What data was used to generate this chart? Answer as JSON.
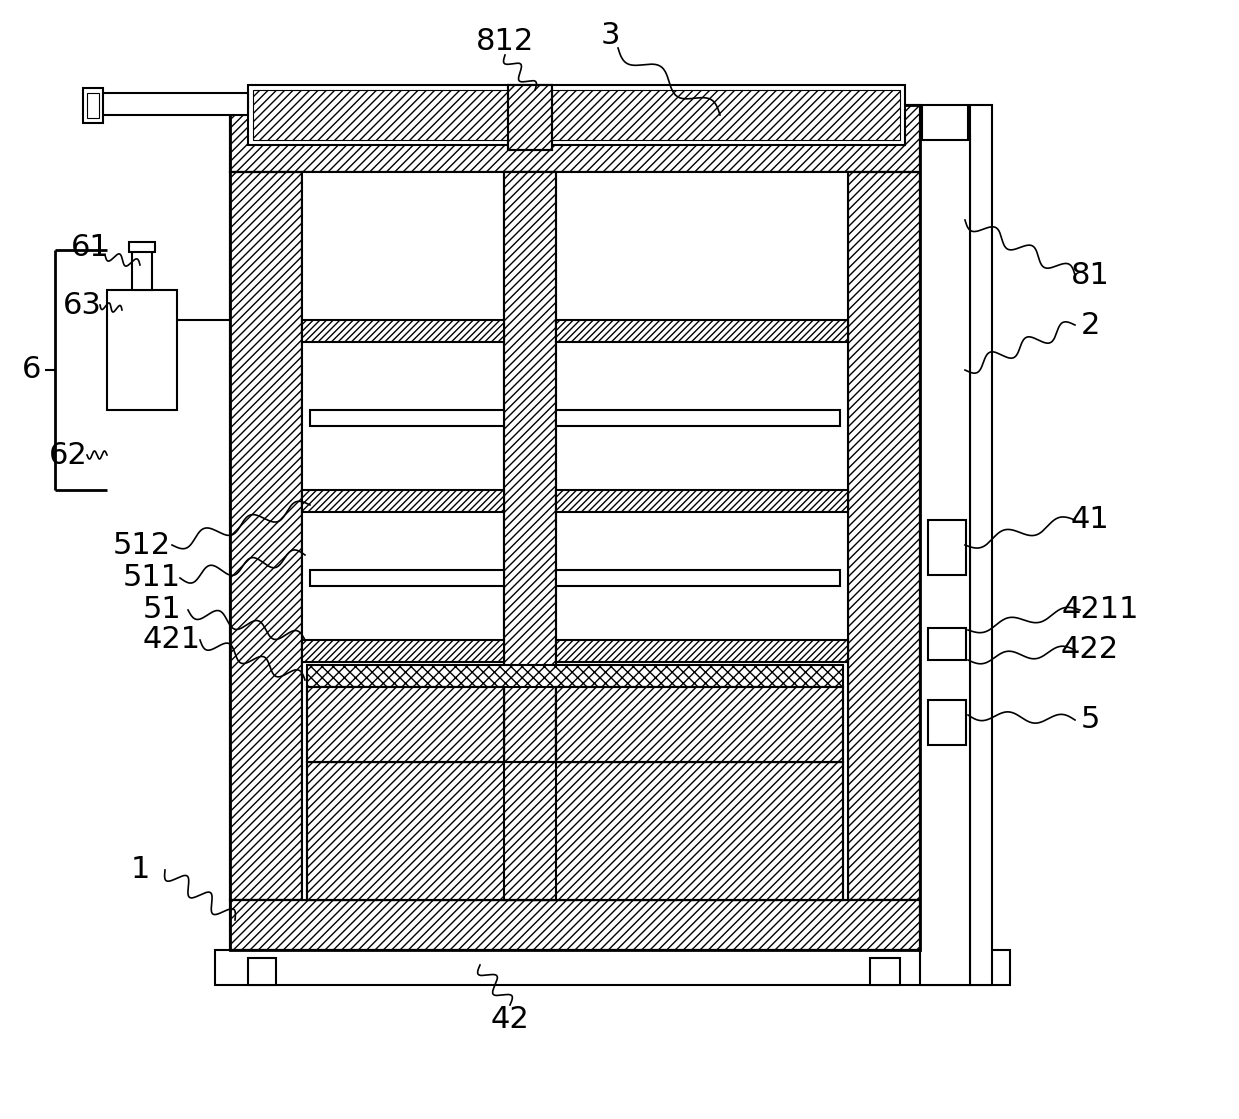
{
  "bg_color": "#ffffff",
  "lw_main": 1.5,
  "lw_thin": 0.8,
  "lw_thick": 2.0,
  "fig_w": 12.39,
  "fig_h": 11.19,
  "dpi": 100
}
